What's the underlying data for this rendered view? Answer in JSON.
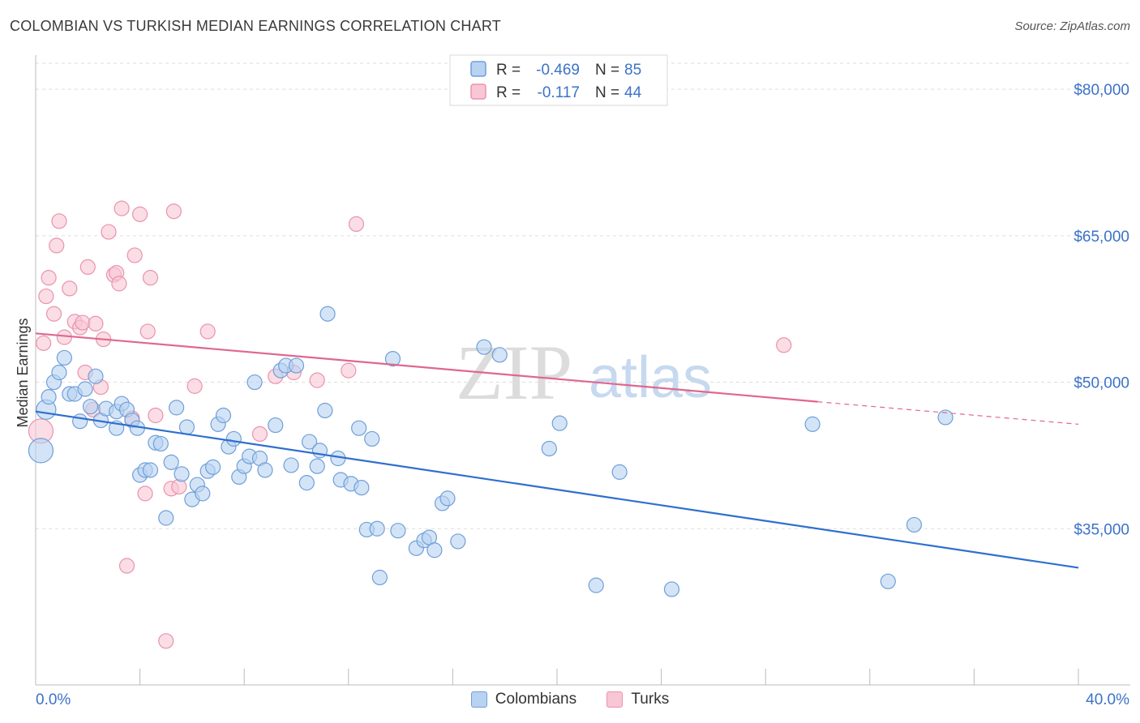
{
  "title": "COLOMBIAN VS TURKISH MEDIAN EARNINGS CORRELATION CHART",
  "source": "Source: ZipAtlas.com",
  "watermark": {
    "zip": "ZIP",
    "atlas": "atlas"
  },
  "legend_top": [
    {
      "r_label": "R =",
      "r_value": "-0.469",
      "n_label": "N =",
      "n_value": "85"
    },
    {
      "r_label": "R =",
      "r_value": "-0.117",
      "n_label": "N =",
      "n_value": "44"
    }
  ],
  "legend_bottom": [
    "Colombians",
    "Turks"
  ],
  "colors": {
    "blue_fill": "#b8d2f2",
    "blue_stroke": "#6f9fd8",
    "blue_line": "#2f6fce",
    "pink_fill": "#f8c6d4",
    "pink_stroke": "#e993ad",
    "pink_line": "#e0678f",
    "axis_text": "#3c72c9",
    "grid": "#dddddd"
  },
  "chart_data": {
    "type": "scatter",
    "title": "COLOMBIAN VS TURKISH MEDIAN EARNINGS CORRELATION CHART",
    "xlabel": "",
    "ylabel": "Median Earnings",
    "xlim": [
      0,
      40
    ],
    "ylim": [
      19000,
      83500
    ],
    "x_tick_labels": [
      "0.0%",
      "40.0%"
    ],
    "y_ticks": [
      35000,
      50000,
      65000,
      80000
    ],
    "y_tick_labels": [
      "$35,000",
      "$50,000",
      "$65,000",
      "$80,000"
    ],
    "grid": "horizontal dashed",
    "legend_placement": "top-center",
    "series": [
      {
        "name": "Colombians",
        "r": -0.469,
        "n": 85,
        "trend": {
          "x": [
            0,
            40
          ],
          "y": [
            47000,
            31000
          ]
        },
        "points": [
          [
            0.2,
            43000
          ],
          [
            0.4,
            47200
          ],
          [
            0.5,
            48500
          ],
          [
            0.7,
            50000
          ],
          [
            0.9,
            51000
          ],
          [
            1.1,
            52500
          ],
          [
            1.3,
            48800
          ],
          [
            1.5,
            48800
          ],
          [
            1.7,
            46000
          ],
          [
            1.9,
            49300
          ],
          [
            2.1,
            47500
          ],
          [
            2.3,
            50600
          ],
          [
            2.5,
            46100
          ],
          [
            2.7,
            47300
          ],
          [
            3.1,
            47000
          ],
          [
            3.1,
            45300
          ],
          [
            3.3,
            47800
          ],
          [
            3.5,
            47200
          ],
          [
            3.7,
            46100
          ],
          [
            3.9,
            45300
          ],
          [
            4.0,
            40500
          ],
          [
            4.2,
            41000
          ],
          [
            4.4,
            41000
          ],
          [
            4.6,
            43800
          ],
          [
            4.8,
            43700
          ],
          [
            5.0,
            36100
          ],
          [
            5.2,
            41800
          ],
          [
            5.4,
            47400
          ],
          [
            5.6,
            40600
          ],
          [
            5.8,
            45400
          ],
          [
            6.0,
            38000
          ],
          [
            6.2,
            39500
          ],
          [
            6.4,
            38600
          ],
          [
            6.6,
            40900
          ],
          [
            6.8,
            41300
          ],
          [
            7.0,
            45700
          ],
          [
            7.2,
            46600
          ],
          [
            7.4,
            43400
          ],
          [
            7.6,
            44200
          ],
          [
            7.8,
            40300
          ],
          [
            8.0,
            41400
          ],
          [
            8.2,
            42400
          ],
          [
            8.4,
            50000
          ],
          [
            8.6,
            42200
          ],
          [
            8.8,
            41000
          ],
          [
            9.2,
            45600
          ],
          [
            9.4,
            51200
          ],
          [
            9.6,
            51700
          ],
          [
            9.8,
            41500
          ],
          [
            10.0,
            51700
          ],
          [
            10.4,
            39700
          ],
          [
            10.5,
            43900
          ],
          [
            10.8,
            41400
          ],
          [
            10.9,
            43000
          ],
          [
            11.1,
            47100
          ],
          [
            11.2,
            57000
          ],
          [
            11.6,
            42200
          ],
          [
            11.7,
            40000
          ],
          [
            12.1,
            39600
          ],
          [
            12.4,
            45300
          ],
          [
            12.5,
            39200
          ],
          [
            12.7,
            34900
          ],
          [
            12.9,
            44200
          ],
          [
            13.1,
            35000
          ],
          [
            13.2,
            30000
          ],
          [
            13.7,
            52400
          ],
          [
            13.9,
            34800
          ],
          [
            14.6,
            33000
          ],
          [
            14.9,
            33800
          ],
          [
            15.1,
            34100
          ],
          [
            15.3,
            32800
          ],
          [
            15.6,
            37600
          ],
          [
            15.8,
            38100
          ],
          [
            16.2,
            33700
          ],
          [
            17.2,
            53600
          ],
          [
            17.8,
            52800
          ],
          [
            19.7,
            43200
          ],
          [
            20.1,
            45800
          ],
          [
            21.5,
            29200
          ],
          [
            22.4,
            40800
          ],
          [
            24.4,
            28800
          ],
          [
            29.8,
            45700
          ],
          [
            32.7,
            29600
          ],
          [
            33.7,
            35400
          ],
          [
            34.9,
            46400
          ]
        ]
      },
      {
        "name": "Turks",
        "r": -0.117,
        "n": 44,
        "trend": {
          "x": [
            0,
            30
          ],
          "y": [
            55000,
            48000
          ]
        },
        "trend_dashed": {
          "x": [
            30,
            40
          ],
          "y": [
            48000,
            45700
          ]
        },
        "points": [
          [
            0.2,
            45000
          ],
          [
            0.3,
            54000
          ],
          [
            0.4,
            58800
          ],
          [
            0.5,
            60700
          ],
          [
            0.7,
            57000
          ],
          [
            0.8,
            64000
          ],
          [
            0.9,
            66500
          ],
          [
            1.1,
            54600
          ],
          [
            1.3,
            59600
          ],
          [
            1.5,
            56200
          ],
          [
            1.7,
            55600
          ],
          [
            1.8,
            56100
          ],
          [
            1.9,
            51000
          ],
          [
            2.0,
            61800
          ],
          [
            2.2,
            47200
          ],
          [
            2.3,
            56000
          ],
          [
            2.5,
            49500
          ],
          [
            2.6,
            54400
          ],
          [
            2.8,
            65400
          ],
          [
            3.0,
            61000
          ],
          [
            3.1,
            61200
          ],
          [
            3.2,
            60100
          ],
          [
            3.3,
            67800
          ],
          [
            3.5,
            31200
          ],
          [
            3.7,
            46300
          ],
          [
            3.8,
            63000
          ],
          [
            4.0,
            67200
          ],
          [
            4.2,
            38600
          ],
          [
            4.3,
            55200
          ],
          [
            4.4,
            60700
          ],
          [
            4.6,
            46600
          ],
          [
            5.0,
            23500
          ],
          [
            5.2,
            39100
          ],
          [
            5.3,
            67500
          ],
          [
            5.5,
            39300
          ],
          [
            6.1,
            49600
          ],
          [
            6.6,
            55200
          ],
          [
            8.6,
            44700
          ],
          [
            9.2,
            50600
          ],
          [
            9.9,
            51000
          ],
          [
            10.8,
            50200
          ],
          [
            12.0,
            51200
          ],
          [
            12.3,
            66200
          ],
          [
            28.7,
            53800
          ]
        ]
      }
    ]
  }
}
